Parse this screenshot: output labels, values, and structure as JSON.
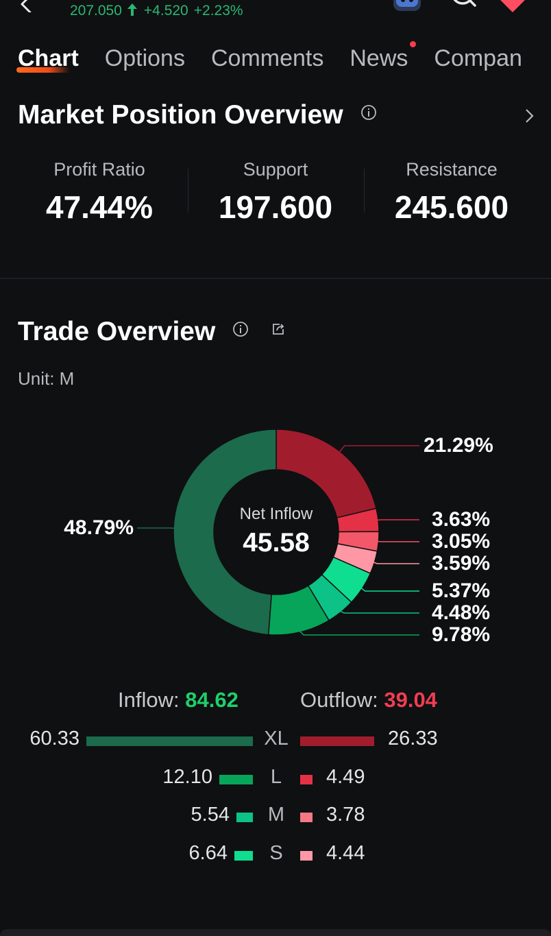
{
  "header": {
    "price": "207.050",
    "change": "+4.520",
    "change_pct": "+2.23%",
    "up_color": "#2bb673",
    "icons": [
      "back-icon",
      "robot-icon",
      "search-icon",
      "favorite-heart-icon"
    ]
  },
  "tabs": [
    {
      "label": "Chart",
      "active": true
    },
    {
      "label": "Options",
      "active": false
    },
    {
      "label": "Comments",
      "active": false
    },
    {
      "label": "News",
      "active": false,
      "dot": true
    },
    {
      "label": "Compan",
      "active": false
    }
  ],
  "market_position": {
    "title": "Market Position Overview",
    "stats": [
      {
        "label": "Profit Ratio",
        "value": "47.44%"
      },
      {
        "label": "Support",
        "value": "197.600"
      },
      {
        "label": "Resistance",
        "value": "245.600"
      }
    ]
  },
  "trade_overview": {
    "title": "Trade Overview",
    "unit": "Unit: M",
    "center_label": "Net Inflow",
    "center_value": "45.58",
    "inflow_label": "Inflow:",
    "inflow_value": "84.62",
    "outflow_label": "Outflow:",
    "outflow_value": "39.04",
    "rows": [
      {
        "size": "XL",
        "inflow": "60.33",
        "outflow": "26.33"
      },
      {
        "size": "L",
        "inflow": "12.10",
        "outflow": "4.49"
      },
      {
        "size": "M",
        "inflow": "5.54",
        "outflow": "3.78"
      },
      {
        "size": "S",
        "inflow": "6.64",
        "outflow": "4.44"
      }
    ],
    "colors": {
      "in_xl": "#1c6b4c",
      "in_l": "#07a55a",
      "in_m": "#0cc287",
      "in_s": "#0fdd8f",
      "out_xl": "#a11d2e",
      "out_l": "#e43146",
      "out_m": "#f57885",
      "out_s": "#ff97a5",
      "inflow_text": "#1fcf6b",
      "outflow_text": "#f23d52"
    }
  },
  "chart_data": {
    "type": "pie",
    "categories": [
      "Outflow XL",
      "Outflow L",
      "Outflow M",
      "Outflow S",
      "Inflow S",
      "Inflow M",
      "Inflow L",
      "Inflow XL"
    ],
    "values": [
      21.29,
      3.63,
      3.05,
      3.59,
      5.37,
      4.48,
      9.78,
      48.79
    ],
    "labels": [
      "21.29%",
      "3.63%",
      "3.05%",
      "3.59%",
      "5.37%",
      "4.48%",
      "9.78%",
      "48.79%"
    ],
    "colors": [
      "#a11d2e",
      "#e43146",
      "#f25869",
      "#ff97a5",
      "#0fdd8f",
      "#0cc287",
      "#07a55a",
      "#1c6b4c"
    ]
  }
}
